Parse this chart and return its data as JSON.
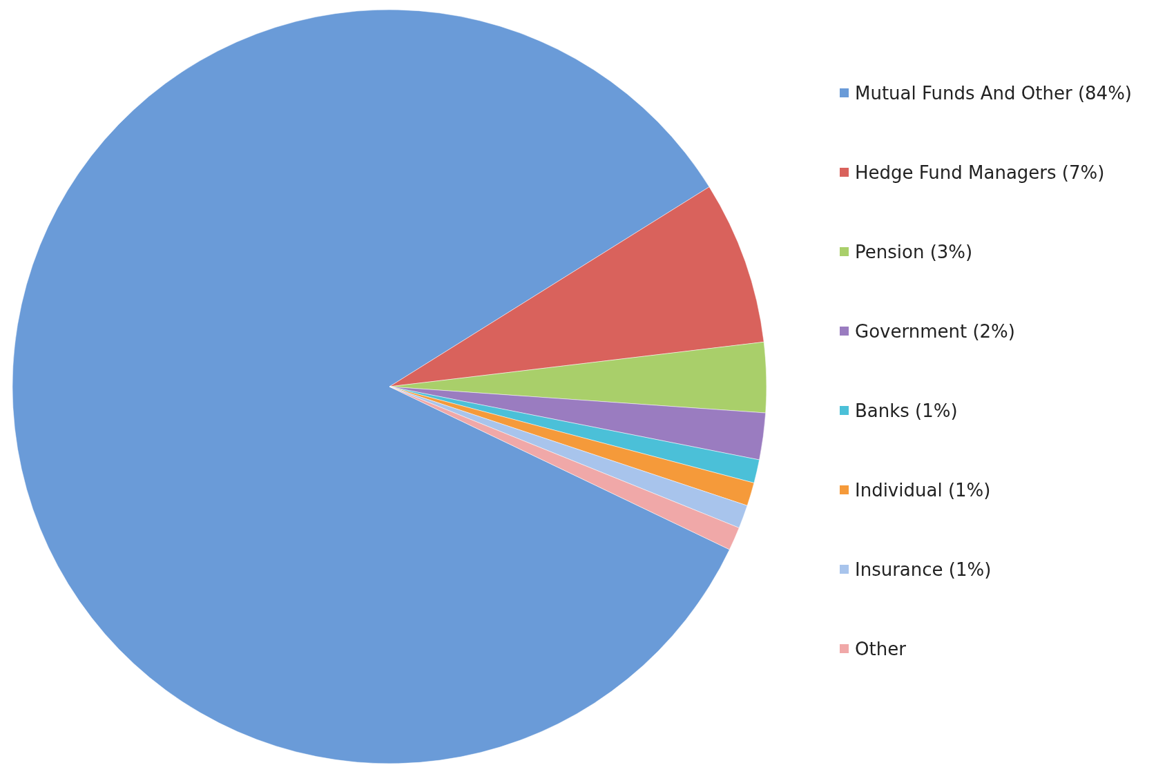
{
  "chart_data": {
    "type": "pie",
    "categories": [
      "Mutual Funds And Other (84%)",
      "Hedge Fund Managers (7%)",
      "Pension (3%)",
      "Government (2%)",
      "Banks (1%)",
      "Individual (1%)",
      "Insurance (1%)",
      "Other"
    ],
    "values": [
      84,
      7,
      3,
      2,
      1,
      1,
      1,
      1
    ],
    "colors": [
      "#6a9bd8",
      "#d9625c",
      "#a9cf6a",
      "#9a7cc0",
      "#4bc0d8",
      "#f59a3a",
      "#a8c4ec",
      "#f0a8a8"
    ],
    "legend": "right"
  }
}
